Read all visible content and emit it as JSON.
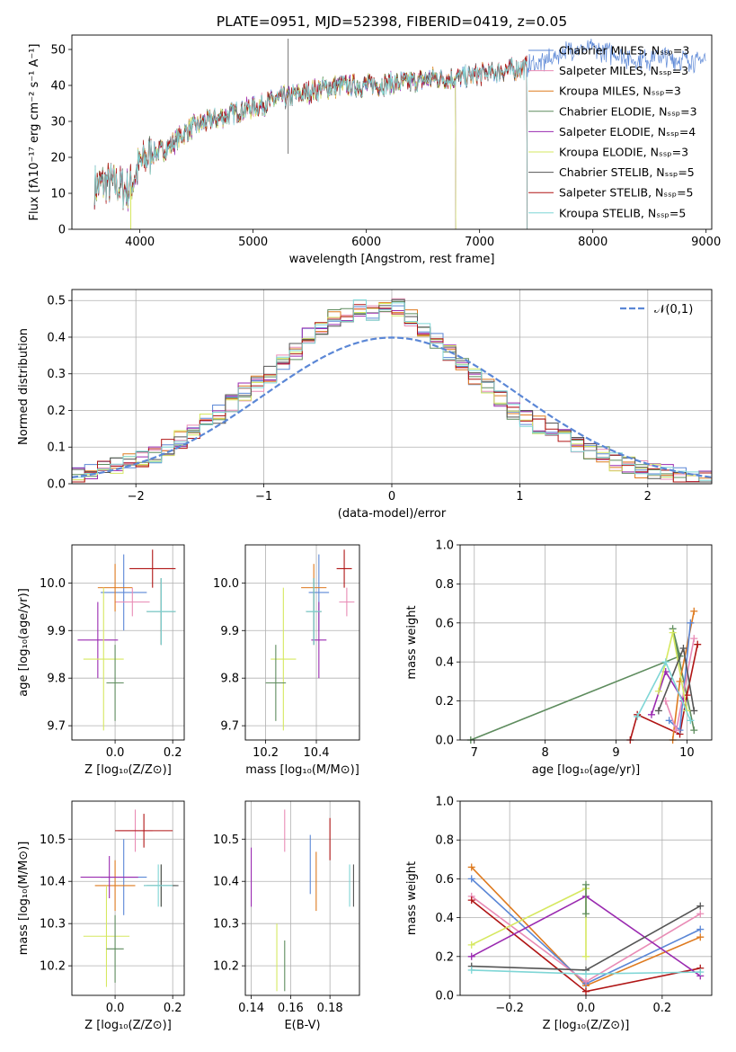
{
  "colors": {
    "chabrier_miles": "#5b87d6",
    "salpeter_miles": "#e98bb5",
    "kroupa_miles": "#de7a1f",
    "chabrier_elodie": "#5e8c5e",
    "salpeter_elodie": "#9a2ab0",
    "kroupa_elodie": "#d6e860",
    "chabrier_stelib": "#555555",
    "salpeter_stelib": "#b01515",
    "kroupa_stelib": "#7fd6d6",
    "normal": "#5b87d6",
    "grid": "#b0b0b0"
  },
  "chart_data": [
    {
      "type": "line",
      "panel": "spectrum",
      "title": "PLATE=0951, MJD=52398, FIBERID=0419, z=0.05",
      "xlabel": "wavelength [Angstrom, rest frame]",
      "ylabel": "Flux [fλ10⁻¹⁷ erg cm⁻² s⁻¹ A⁻¹]",
      "xlim": [
        3400,
        9050
      ],
      "ylim": [
        0,
        54
      ],
      "xticks": [
        4000,
        5000,
        6000,
        7000,
        8000,
        9000
      ],
      "yticks": [
        0,
        10,
        20,
        30,
        40,
        50
      ],
      "legend_placement": "right",
      "series": [
        {
          "name": "Chabrier MILES, Nₛₛₚ=3",
          "key": "chabrier_miles",
          "x_end": 9000
        },
        {
          "name": "Salpeter MILES, Nₛₛₚ=3",
          "key": "salpeter_miles",
          "x_end": 7420
        },
        {
          "name": "Kroupa MILES, Nₛₛₚ=3",
          "key": "kroupa_miles",
          "x_end": 7420
        },
        {
          "name": "Chabrier ELODIE, Nₛₛₚ=3",
          "key": "chabrier_elodie",
          "x_end": 6790
        },
        {
          "name": "Salpeter ELODIE, Nₛₛₚ=4",
          "key": "salpeter_elodie",
          "x_end": 6790
        },
        {
          "name": "Kroupa ELODIE, Nₛₛₚ=3",
          "key": "kroupa_elodie",
          "x_end": 6790
        },
        {
          "name": "Chabrier STELIB, Nₛₛₚ=5",
          "key": "chabrier_stelib",
          "x_end": 7420
        },
        {
          "name": "Salpeter STELIB, Nₛₛₚ=5",
          "key": "salpeter_stelib",
          "x_end": 7420
        },
        {
          "name": "Kroupa STELIB, Nₛₛₚ=5",
          "key": "kroupa_stelib",
          "x_end": 7420
        }
      ],
      "continuum": {
        "x": [
          3600,
          3700,
          3800,
          3900,
          4000,
          4100,
          4200,
          4300,
          4400,
          4500,
          4600,
          4700,
          4800,
          4900,
          5000,
          5200,
          5400,
          5600,
          5800,
          6000,
          6200,
          6400,
          6600,
          6800,
          7000,
          7200,
          7400,
          7600,
          7800,
          8000,
          8200,
          8400,
          8600,
          8800,
          9000
        ],
        "y": [
          12,
          13,
          12,
          11,
          18,
          21,
          22,
          24,
          27,
          29,
          30,
          31,
          32,
          33,
          34,
          36,
          37.5,
          39,
          40,
          40,
          40.5,
          41,
          42,
          42,
          43,
          44,
          45,
          47,
          50,
          50,
          48.5,
          47,
          48,
          47,
          47
        ]
      }
    },
    {
      "type": "line",
      "panel": "residuals",
      "xlabel": "(data-model)/error",
      "ylabel": "Normed distribution",
      "xlim": [
        -2.5,
        2.5
      ],
      "ylim": [
        0,
        0.53
      ],
      "xticks": [
        -2,
        -1,
        0,
        1,
        2
      ],
      "yticks": [
        0.0,
        0.1,
        0.2,
        0.3,
        0.4,
        0.5
      ],
      "grid": true,
      "legend_placement": "top-right",
      "normal_label": "𝒩(0,1)",
      "bin_edges": [
        -2.5,
        -2.4,
        -2.3,
        -2.2,
        -2.1,
        -2.0,
        -1.9,
        -1.8,
        -1.7,
        -1.6,
        -1.5,
        -1.4,
        -1.3,
        -1.2,
        -1.1,
        -1.0,
        -0.9,
        -0.8,
        -0.7,
        -0.6,
        -0.5,
        -0.4,
        -0.3,
        -0.2,
        -0.1,
        0.0,
        0.1,
        0.2,
        0.3,
        0.4,
        0.5,
        0.6,
        0.7,
        0.8,
        0.9,
        1.0,
        1.1,
        1.2,
        1.3,
        1.4,
        1.5,
        1.6,
        1.7,
        1.8,
        1.9,
        2.0,
        2.1,
        2.2,
        2.3,
        2.4,
        2.5
      ],
      "base_hist": [
        0.02,
        0.03,
        0.04,
        0.05,
        0.06,
        0.07,
        0.08,
        0.1,
        0.12,
        0.14,
        0.17,
        0.19,
        0.22,
        0.25,
        0.27,
        0.3,
        0.33,
        0.36,
        0.4,
        0.43,
        0.45,
        0.46,
        0.48,
        0.47,
        0.49,
        0.48,
        0.45,
        0.42,
        0.39,
        0.36,
        0.33,
        0.29,
        0.26,
        0.23,
        0.2,
        0.18,
        0.16,
        0.15,
        0.13,
        0.11,
        0.09,
        0.08,
        0.06,
        0.05,
        0.04,
        0.03,
        0.03,
        0.02,
        0.02,
        0.01
      ]
    },
    {
      "type": "scatter",
      "panel": "age_vs_Z",
      "xlabel": "Z [log₁₀(Z/Z⊙)]",
      "ylabel": "age  [log₁₀(age/yr)]",
      "xlim": [
        -0.15,
        0.24
      ],
      "ylim": [
        9.67,
        10.08
      ],
      "xticks": [
        0.0,
        0.2
      ],
      "yticks": [
        9.7,
        9.8,
        9.9,
        10.0
      ],
      "points": [
        {
          "key": "chabrier_miles",
          "x": 0.03,
          "y": 9.98,
          "xerr": 0.08,
          "yerr": 0.08
        },
        {
          "key": "salpeter_miles",
          "x": 0.06,
          "y": 9.96,
          "xerr": 0.06,
          "yerr": 0.03
        },
        {
          "key": "kroupa_miles",
          "x": 0.0,
          "y": 9.99,
          "xerr": 0.06,
          "yerr": 0.05
        },
        {
          "key": "chabrier_elodie",
          "x": 0.16,
          "y": 9.94,
          "xerr": 0.05,
          "yerr": 0.07
        },
        {
          "key": "salpeter_elodie",
          "x": -0.06,
          "y": 9.88,
          "xerr": 0.07,
          "yerr": 0.08
        },
        {
          "key": "kroupa_elodie",
          "x": -0.04,
          "y": 9.84,
          "xerr": 0.07,
          "yerr": 0.15
        },
        {
          "key": "chabrier_stelib",
          "x": 0.16,
          "y": 9.94,
          "xerr": 0.05,
          "yerr": 0.07
        },
        {
          "key": "salpeter_stelib",
          "x": 0.13,
          "y": 10.03,
          "xerr": 0.08,
          "yerr": 0.04
        },
        {
          "key": "kroupa_stelib",
          "x": 0.16,
          "y": 9.94,
          "xerr": 0.05,
          "yerr": 0.07
        },
        {
          "key": "chabrier_elodie",
          "x": 0.0,
          "y": 9.79,
          "xerr": 0.03,
          "yerr": 0.08
        }
      ]
    },
    {
      "type": "scatter",
      "panel": "age_vs_mass",
      "xlabel": "mass [log₁₀(M/M⊙)]",
      "ylabel": "",
      "xlim": [
        10.12,
        10.57
      ],
      "ylim": [
        9.67,
        10.08
      ],
      "xticks": [
        10.2,
        10.4
      ],
      "yticks": [
        9.7,
        9.8,
        9.9,
        10.0
      ],
      "points": [
        {
          "key": "chabrier_miles",
          "x": 10.41,
          "y": 9.98,
          "xerr": 0.04,
          "yerr": 0.08
        },
        {
          "key": "salpeter_miles",
          "x": 10.52,
          "y": 9.96,
          "xerr": 0.03,
          "yerr": 0.03
        },
        {
          "key": "kroupa_miles",
          "x": 10.39,
          "y": 9.99,
          "xerr": 0.05,
          "yerr": 0.05
        },
        {
          "key": "chabrier_elodie",
          "x": 10.39,
          "y": 9.94,
          "xerr": 0.03,
          "yerr": 0.07
        },
        {
          "key": "salpeter_elodie",
          "x": 10.41,
          "y": 9.88,
          "xerr": 0.03,
          "yerr": 0.08
        },
        {
          "key": "kroupa_elodie",
          "x": 10.27,
          "y": 9.84,
          "xerr": 0.05,
          "yerr": 0.15
        },
        {
          "key": "chabrier_stelib",
          "x": 10.39,
          "y": 9.94,
          "xerr": 0.03,
          "yerr": 0.07
        },
        {
          "key": "salpeter_stelib",
          "x": 10.51,
          "y": 10.03,
          "xerr": 0.03,
          "yerr": 0.04
        },
        {
          "key": "kroupa_stelib",
          "x": 10.39,
          "y": 9.94,
          "xerr": 0.03,
          "yerr": 0.07
        },
        {
          "key": "chabrier_elodie",
          "x": 10.24,
          "y": 9.79,
          "xerr": 0.04,
          "yerr": 0.08
        }
      ]
    },
    {
      "type": "line",
      "panel": "weight_vs_age",
      "xlabel": "age  [log₁₀(age/yr)]",
      "ylabel": "mass weight",
      "xlim": [
        6.8,
        10.35
      ],
      "ylim": [
        0,
        1
      ],
      "xticks": [
        7,
        8,
        9,
        10
      ],
      "yticks": [
        0.0,
        0.2,
        0.4,
        0.6,
        0.8,
        1.0
      ],
      "grid": true,
      "series": [
        {
          "key": "chabrier_elodie",
          "x": [
            6.95,
            9.9,
            9.8,
            10.1
          ],
          "y": [
            0.0,
            0.43,
            0.57,
            0.05
          ]
        },
        {
          "key": "salpeter_stelib",
          "x": [
            9.2,
            9.3,
            9.9,
            10.0,
            10.15
          ],
          "y": [
            0.0,
            0.13,
            0.03,
            0.23,
            0.49
          ]
        },
        {
          "key": "kroupa_miles",
          "x": [
            9.8,
            9.9,
            10.1
          ],
          "y": [
            0.0,
            0.3,
            0.66
          ]
        },
        {
          "key": "chabrier_miles",
          "x": [
            9.75,
            9.9,
            10.05
          ],
          "y": [
            0.1,
            0.05,
            0.6
          ]
        },
        {
          "key": "salpeter_miles",
          "x": [
            9.7,
            9.85,
            10.1
          ],
          "y": [
            0.2,
            0.05,
            0.52
          ]
        },
        {
          "key": "salpeter_elodie",
          "x": [
            9.5,
            9.7,
            9.95
          ],
          "y": [
            0.13,
            0.35,
            0.2
          ]
        },
        {
          "key": "kroupa_elodie",
          "x": [
            9.6,
            9.8,
            10.0
          ],
          "y": [
            0.25,
            0.55,
            0.15
          ]
        },
        {
          "key": "chabrier_stelib",
          "x": [
            9.6,
            9.95,
            10.1
          ],
          "y": [
            0.15,
            0.47,
            0.15
          ]
        },
        {
          "key": "kroupa_stelib",
          "x": [
            9.3,
            9.7,
            10.05
          ],
          "y": [
            0.12,
            0.4,
            0.1
          ]
        }
      ]
    },
    {
      "type": "scatter",
      "panel": "mass_vs_Z",
      "xlabel": "Z [log₁₀(Z/Z⊙)]",
      "ylabel": "mass [log₁₀(M/M⊙)]",
      "xlim": [
        -0.15,
        0.24
      ],
      "ylim": [
        10.13,
        10.59
      ],
      "xticks": [
        0.0,
        0.2
      ],
      "yticks": [
        10.2,
        10.3,
        10.4,
        10.5
      ],
      "points": [
        {
          "key": "chabrier_miles",
          "x": 0.03,
          "y": 10.41,
          "xerr": 0.08,
          "yerr": 0.09
        },
        {
          "key": "salpeter_miles",
          "x": 0.07,
          "y": 10.52,
          "xerr": 0.06,
          "yerr": 0.05
        },
        {
          "key": "kroupa_miles",
          "x": 0.0,
          "y": 10.39,
          "xerr": 0.07,
          "yerr": 0.06
        },
        {
          "key": "chabrier_elodie",
          "x": 0.16,
          "y": 10.39,
          "xerr": 0.05,
          "yerr": 0.05
        },
        {
          "key": "salpeter_elodie",
          "x": -0.02,
          "y": 10.41,
          "xerr": 0.1,
          "yerr": 0.05
        },
        {
          "key": "kroupa_elodie",
          "x": -0.03,
          "y": 10.27,
          "xerr": 0.08,
          "yerr": 0.12
        },
        {
          "key": "chabrier_stelib",
          "x": 0.16,
          "y": 10.39,
          "xerr": 0.06,
          "yerr": 0.05
        },
        {
          "key": "salpeter_stelib",
          "x": 0.1,
          "y": 10.52,
          "xerr": 0.1,
          "yerr": 0.04
        },
        {
          "key": "kroupa_stelib",
          "x": 0.15,
          "y": 10.39,
          "xerr": 0.05,
          "yerr": 0.05
        },
        {
          "key": "chabrier_elodie",
          "x": 0.0,
          "y": 10.24,
          "xerr": 0.03,
          "yerr": 0.08
        }
      ]
    },
    {
      "type": "scatter",
      "panel": "mass_vs_ebv",
      "xlabel": "E(B-V)",
      "ylabel": "",
      "xlim": [
        0.137,
        0.195
      ],
      "ylim": [
        10.13,
        10.59
      ],
      "xticks": [
        0.14,
        0.16,
        0.18
      ],
      "yticks": [
        10.2,
        10.3,
        10.4,
        10.5
      ],
      "points": [
        {
          "key": "chabrier_miles",
          "x": 0.17,
          "y": 10.44,
          "yerr": 0.07
        },
        {
          "key": "salpeter_miles",
          "x": 0.157,
          "y": 10.52,
          "yerr": 0.05
        },
        {
          "key": "kroupa_miles",
          "x": 0.173,
          "y": 10.4,
          "yerr": 0.07
        },
        {
          "key": "salpeter_elodie",
          "x": 0.14,
          "y": 10.41,
          "yerr": 0.07
        },
        {
          "key": "kroupa_elodie",
          "x": 0.153,
          "y": 10.22,
          "yerr": 0.08
        },
        {
          "key": "chabrier_elodie",
          "x": 0.157,
          "y": 10.2,
          "yerr": 0.06
        },
        {
          "key": "salpeter_stelib",
          "x": 0.18,
          "y": 10.5,
          "yerr": 0.05
        },
        {
          "key": "kroupa_stelib",
          "x": 0.19,
          "y": 10.39,
          "yerr": 0.05
        },
        {
          "key": "chabrier_stelib",
          "x": 0.192,
          "y": 10.39,
          "yerr": 0.05
        }
      ]
    },
    {
      "type": "line",
      "panel": "weight_vs_Z",
      "xlabel": "Z [log₁₀(Z/Z⊙)]",
      "ylabel": "mass weight",
      "xlim": [
        -0.33,
        0.33
      ],
      "ylim": [
        0,
        1
      ],
      "xticks": [
        -0.2,
        0.0,
        0.2
      ],
      "yticks": [
        0.0,
        0.2,
        0.4,
        0.6,
        0.8,
        1.0
      ],
      "grid": true,
      "series": [
        {
          "key": "kroupa_miles",
          "x": [
            -0.3,
            0.0,
            0.3
          ],
          "y": [
            0.66,
            0.05,
            0.3
          ]
        },
        {
          "key": "chabrier_miles",
          "x": [
            -0.3,
            0.0,
            0.3
          ],
          "y": [
            0.6,
            0.06,
            0.34
          ]
        },
        {
          "key": "salpeter_miles",
          "x": [
            -0.3,
            0.0,
            0.3
          ],
          "y": [
            0.51,
            0.07,
            0.42
          ]
        },
        {
          "key": "salpeter_stelib",
          "x": [
            -0.3,
            0.0,
            0.3
          ],
          "y": [
            0.49,
            0.02,
            0.14
          ]
        },
        {
          "key": "kroupa_elodie",
          "x": [
            -0.3,
            0.0,
            0.0
          ],
          "y": [
            0.26,
            0.55,
            0.2
          ]
        },
        {
          "key": "salpeter_elodie",
          "x": [
            -0.3,
            0.0,
            0.3
          ],
          "y": [
            0.2,
            0.51,
            0.1
          ]
        },
        {
          "key": "chabrier_stelib",
          "x": [
            -0.3,
            0.0,
            0.3
          ],
          "y": [
            0.15,
            0.13,
            0.46
          ]
        },
        {
          "key": "kroupa_stelib",
          "x": [
            -0.3,
            0.0,
            0.3
          ],
          "y": [
            0.13,
            0.11,
            0.12
          ]
        },
        {
          "key": "chabrier_elodie",
          "x": [
            0.0,
            0.0
          ],
          "y": [
            0.57,
            0.42
          ]
        }
      ]
    }
  ]
}
